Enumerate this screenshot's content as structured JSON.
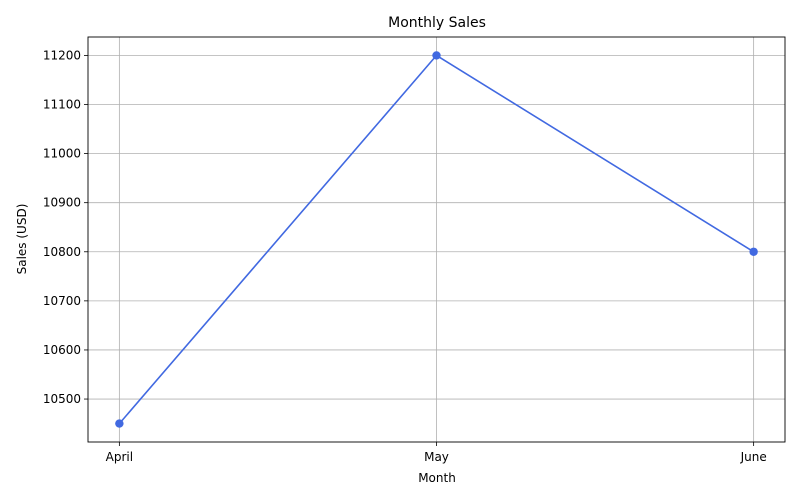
{
  "chart_data": {
    "type": "line",
    "title": "Monthly Sales",
    "xlabel": "Month",
    "ylabel": "Sales (USD)",
    "categories": [
      "April",
      "May",
      "June"
    ],
    "series": [
      {
        "values": [
          10450,
          11200,
          10800
        ],
        "color": "#4169e1",
        "marker": "circle"
      }
    ],
    "yticks": [
      10500,
      10600,
      10700,
      10800,
      10900,
      11000,
      11100,
      11200
    ],
    "ylim": [
      10412.5,
      11237.5
    ],
    "grid": true
  }
}
